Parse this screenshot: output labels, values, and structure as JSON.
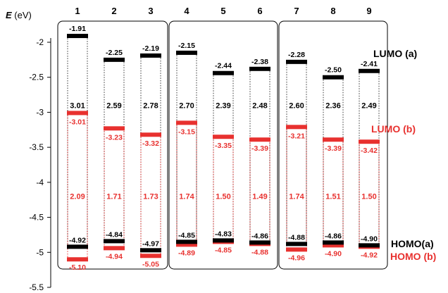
{
  "chart_data": {
    "type": "energy-level-diagram",
    "ylabel": "E (eV)",
    "ylim": [
      -5.5,
      -2
    ],
    "yticks": [
      "-2",
      "-2.5",
      "-3",
      "-3.5",
      "-4",
      "-4.5",
      "-5",
      "-5.5"
    ],
    "ytick_values": [
      -2,
      -2.5,
      -3,
      -3.5,
      -4,
      -4.5,
      -5,
      -5.5
    ],
    "categories": [
      "1",
      "2",
      "3",
      "4",
      "5",
      "6",
      "7",
      "8",
      "9"
    ],
    "groups": [
      [
        "1",
        "2",
        "3"
      ],
      [
        "4",
        "5",
        "6"
      ],
      [
        "7",
        "8",
        "9"
      ]
    ],
    "series": [
      {
        "name": "LUMO (a)",
        "color": "#000000",
        "values": [
          -1.91,
          -2.25,
          -2.19,
          -2.15,
          -2.44,
          -2.38,
          -2.28,
          -2.5,
          -2.41
        ],
        "labels": [
          "-1.91",
          "-2.25",
          "-2.19",
          "-2.15",
          "-2.44",
          "-2.38",
          "-2.28",
          "-2.50",
          "-2.41"
        ]
      },
      {
        "name": "HOMO(a)",
        "color": "#000000",
        "values": [
          -4.92,
          -4.84,
          -4.97,
          -4.85,
          -4.83,
          -4.86,
          -4.88,
          -4.86,
          -4.9
        ],
        "labels": [
          "-4.92",
          "-4.84",
          "-4.97",
          "-4.85",
          "-4.83",
          "-4.86",
          "-4.88",
          "-4.86",
          "-4.90"
        ]
      },
      {
        "name": "LUMO (b)",
        "color": "#e8312f",
        "values": [
          -3.01,
          -3.23,
          -3.32,
          -3.15,
          -3.35,
          -3.39,
          -3.21,
          -3.39,
          -3.42
        ],
        "labels": [
          "-3.01",
          "-3.23",
          "-3.32",
          "-3.15",
          "-3.35",
          "-3.39",
          "-3.21",
          "-3.39",
          "-3.42"
        ]
      },
      {
        "name": "HOMO (b)",
        "color": "#e8312f",
        "values": [
          -5.1,
          -4.94,
          -5.05,
          -4.89,
          -4.85,
          -4.88,
          -4.96,
          -4.9,
          -4.92
        ],
        "labels": [
          "-5.10",
          "-4.94",
          "-5.05",
          "-4.89",
          "-4.85",
          "-4.88",
          "-4.96",
          "-4.90",
          "-4.92"
        ]
      }
    ],
    "gap_a": {
      "color": "#000000",
      "values": [
        3.01,
        2.59,
        2.78,
        2.7,
        2.39,
        2.48,
        2.6,
        2.36,
        2.49
      ],
      "labels": [
        "3.01",
        "2.59",
        "2.78",
        "2.70",
        "2.39",
        "2.48",
        "2.60",
        "2.36",
        "2.49"
      ]
    },
    "gap_b": {
      "color": "#e8312f",
      "values": [
        2.09,
        1.71,
        1.73,
        1.74,
        1.5,
        1.49,
        1.74,
        1.51,
        1.5
      ],
      "labels": [
        "2.09",
        "1.71",
        "1.73",
        "1.74",
        "1.50",
        "1.49",
        "1.74",
        "1.51",
        "1.50"
      ]
    }
  },
  "legend": {
    "lumo_a": "LUMO (a)",
    "lumo_b": "LUMO (b)",
    "homo_a": "HOMO(a)",
    "homo_b": "HOMO (b)"
  }
}
